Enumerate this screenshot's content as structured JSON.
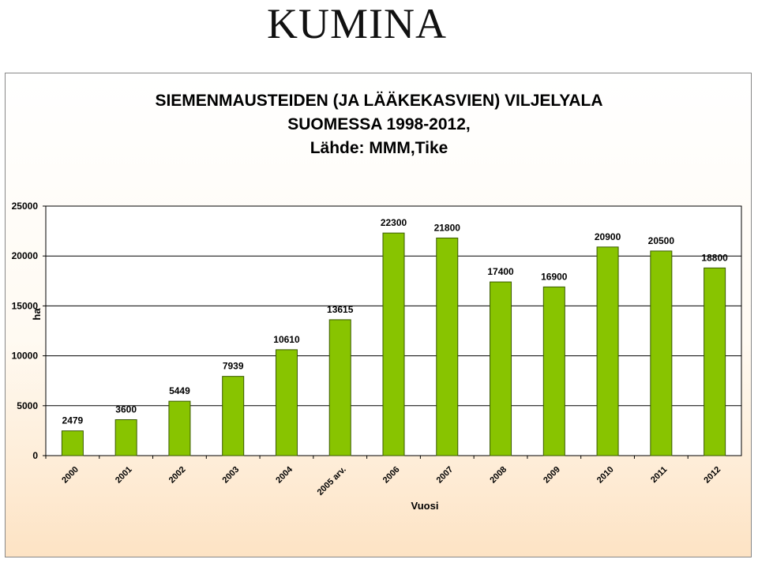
{
  "slide": {
    "title": "KUMINA"
  },
  "chart_data": {
    "type": "bar",
    "title_lines": [
      "SIEMENMAUSTEIDEN  (JA LÄÄKEKASVIEN)  VILJELYALA",
      "SUOMESSA 1998-2012,",
      "Lähde: MMM,Tike"
    ],
    "xlabel": "Vuosi",
    "ylabel": "ha",
    "ylim": [
      0,
      25000
    ],
    "yticks": [
      0,
      5000,
      10000,
      15000,
      20000,
      25000
    ],
    "ytick_labels": [
      "0",
      "5000",
      "10000",
      "15000",
      "20000",
      "25000"
    ],
    "grid": true,
    "bar_color": "#88c400",
    "bar_stroke": "#3a5a00",
    "categories": [
      "2000",
      "2001",
      "2002",
      "2003",
      "2004",
      "2005 arv.",
      "2006",
      "2007",
      "2008",
      "2009",
      "2010",
      "2011",
      "2012"
    ],
    "values": [
      2479,
      3600,
      5449,
      7939,
      10610,
      13615,
      22300,
      21800,
      17400,
      16900,
      20900,
      20500,
      18800
    ],
    "data_labels": [
      "2479",
      "3600",
      "5449",
      "7939",
      "10610",
      "13615",
      "22300",
      "21800",
      "17400",
      "16900",
      "20900",
      "20500",
      "18800"
    ]
  }
}
